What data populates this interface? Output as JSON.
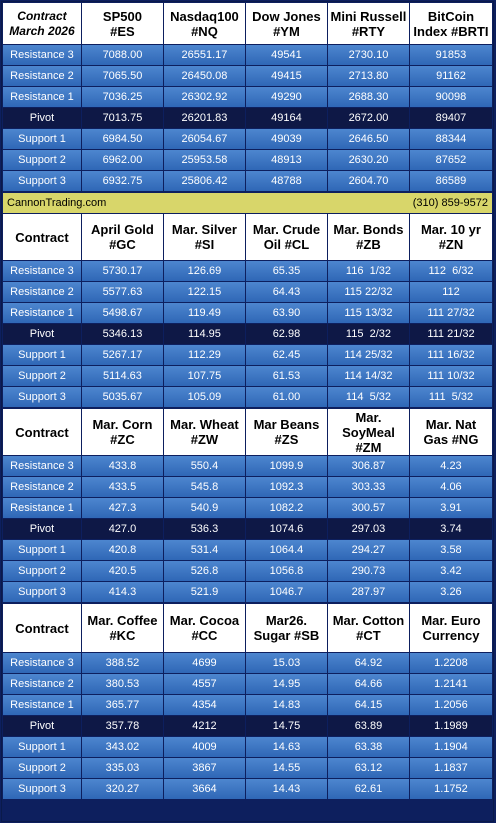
{
  "sections": [
    {
      "headers": [
        "Contract\nMarch 2026",
        "SP500\n#ES",
        "Nasdaq100\n#NQ",
        "Dow Jones\n#YM",
        "Mini Russell\n#RTY",
        "BitCoin\nIndex #BRTI"
      ],
      "rows": [
        {
          "label": "Resistance 3",
          "values": [
            "7088.00",
            "26551.17",
            "49541",
            "2730.10",
            "91853"
          ]
        },
        {
          "label": "Resistance 2",
          "values": [
            "7065.50",
            "26450.08",
            "49415",
            "2713.80",
            "91162"
          ]
        },
        {
          "label": "Resistance 1",
          "values": [
            "7036.25",
            "26302.92",
            "49290",
            "2688.30",
            "90098"
          ]
        },
        {
          "label": "Pivot",
          "values": [
            "7013.75",
            "26201.83",
            "49164",
            "2672.00",
            "89407"
          ]
        },
        {
          "label": "Support 1",
          "values": [
            "6984.50",
            "26054.67",
            "49039",
            "2646.50",
            "88344"
          ]
        },
        {
          "label": "Support 2",
          "values": [
            "6962.00",
            "25953.58",
            "48913",
            "2630.20",
            "87652"
          ]
        },
        {
          "label": "Support 3",
          "values": [
            "6932.75",
            "25806.42",
            "48788",
            "2604.70",
            "86589"
          ]
        }
      ]
    },
    {
      "headers": [
        "Contract",
        "April Gold\n#GC",
        "Mar. Silver\n#SI",
        "Mar. Crude\nOil #CL",
        "Mar. Bonds\n#ZB",
        "Mar. 10 yr\n#ZN"
      ],
      "rows": [
        {
          "label": "Resistance 3",
          "values": [
            "5730.17",
            "126.69",
            "65.35",
            "116  1/32",
            "112  6/32"
          ]
        },
        {
          "label": "Resistance 2",
          "values": [
            "5577.63",
            "122.15",
            "64.43",
            "115 22/32",
            "112"
          ]
        },
        {
          "label": "Resistance 1",
          "values": [
            "5498.67",
            "119.49",
            "63.90",
            "115 13/32",
            "111 27/32"
          ]
        },
        {
          "label": "Pivot",
          "values": [
            "5346.13",
            "114.95",
            "62.98",
            "115  2/32",
            "111 21/32"
          ]
        },
        {
          "label": "Support 1",
          "values": [
            "5267.17",
            "112.29",
            "62.45",
            "114 25/32",
            "111 16/32"
          ]
        },
        {
          "label": "Support 2",
          "values": [
            "5114.63",
            "107.75",
            "61.53",
            "114 14/32",
            "111 10/32"
          ]
        },
        {
          "label": "Support 3",
          "values": [
            "5035.67",
            "105.09",
            "61.00",
            "114  5/32",
            "111  5/32"
          ]
        }
      ]
    },
    {
      "headers": [
        "Contract",
        "Mar. Corn\n#ZC",
        "Mar.  Wheat\n#ZW",
        "Mar Beans\n#ZS",
        "Mar.\nSoyMeal\n#ZM",
        "Mar. Nat\nGas #NG"
      ],
      "rows": [
        {
          "label": "Resistance 3",
          "values": [
            "433.8",
            "550.4",
            "1099.9",
            "306.87",
            "4.23"
          ]
        },
        {
          "label": "Resistance 2",
          "values": [
            "433.5",
            "545.8",
            "1092.3",
            "303.33",
            "4.06"
          ]
        },
        {
          "label": "Resistance 1",
          "values": [
            "427.3",
            "540.9",
            "1082.2",
            "300.57",
            "3.91"
          ]
        },
        {
          "label": "Pivot",
          "values": [
            "427.0",
            "536.3",
            "1074.6",
            "297.03",
            "3.74"
          ]
        },
        {
          "label": "Support 1",
          "values": [
            "420.8",
            "531.4",
            "1064.4",
            "294.27",
            "3.58"
          ]
        },
        {
          "label": "Support 2",
          "values": [
            "420.5",
            "526.8",
            "1056.8",
            "290.73",
            "3.42"
          ]
        },
        {
          "label": "Support 3",
          "values": [
            "414.3",
            "521.9",
            "1046.7",
            "287.97",
            "3.26"
          ]
        }
      ]
    },
    {
      "headers": [
        "Contract",
        "Mar. Coffee\n#KC",
        "Mar. Cocoa\n#CC",
        "Mar26.\nSugar #SB",
        "Mar. Cotton\n#CT",
        "Mar. Euro\nCurrency"
      ],
      "rows": [
        {
          "label": "Resistance 3",
          "values": [
            "388.52",
            "4699",
            "15.03",
            "64.92",
            "1.2208"
          ]
        },
        {
          "label": "Resistance 2",
          "values": [
            "380.53",
            "4557",
            "14.95",
            "64.66",
            "1.2141"
          ]
        },
        {
          "label": "Resistance 1",
          "values": [
            "365.77",
            "4354",
            "14.83",
            "64.15",
            "1.2056"
          ]
        },
        {
          "label": "Pivot",
          "values": [
            "357.78",
            "4212",
            "14.75",
            "63.89",
            "1.1989"
          ]
        },
        {
          "label": "Support 1",
          "values": [
            "343.02",
            "4009",
            "14.63",
            "63.38",
            "1.1904"
          ]
        },
        {
          "label": "Support 2",
          "values": [
            "335.03",
            "3867",
            "14.55",
            "63.12",
            "1.1837"
          ]
        },
        {
          "label": "Support 3",
          "values": [
            "320.27",
            "3664",
            "14.43",
            "62.61",
            "1.1752"
          ]
        }
      ]
    }
  ],
  "banner": {
    "site": "CannonTrading.com",
    "phone": "(310) 859-9572"
  },
  "colors": {
    "row_blue": "#3e78c6",
    "pivot": "#0e1846",
    "banner": "#d8d66a",
    "header_bg": "#ffffff"
  }
}
